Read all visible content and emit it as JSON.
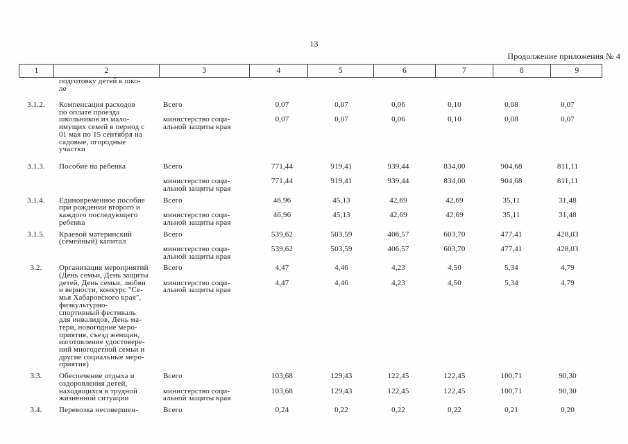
{
  "page": {
    "number": "13",
    "appendix_note": "Продолжение приложения № 4"
  },
  "table": {
    "column_numbers": [
      "1",
      "2",
      "3",
      "4",
      "5",
      "6",
      "7",
      "8",
      "9"
    ],
    "carryover_text": "подготовку детей к шко-\nле",
    "rows": [
      {
        "num": "3.1.2.",
        "name": "Компенсация расходов\nпо оплате проезда\nшкольников из мало-\nимущих семей в период с\n01 мая по 15 сентября на\nсадовые, огородные\nучастки",
        "total_label": "Всего",
        "ministry_label": "министерство соци-\nальной защиты края",
        "total_values": [
          "0,07",
          "0,07",
          "0,06",
          "0,10",
          "0,08",
          "0,07"
        ],
        "ministry_values": [
          "0,07",
          "0,07",
          "0,06",
          "0,10",
          "0,08",
          "0,07"
        ]
      },
      {
        "num": "3.1.3.",
        "name": "Пособие на ребенка",
        "total_label": "Всего",
        "ministry_label": "министерство соци-\nальной защиты края",
        "total_values": [
          "771,44",
          "919,41",
          "939,44",
          "834,00",
          "904,68",
          "811,11"
        ],
        "ministry_values": [
          "771,44",
          "919,41",
          "939,44",
          "834,00",
          "904,68",
          "811,11"
        ]
      },
      {
        "num": "3.1.4.",
        "name": "Единовременное пособие\nпри рождении второго и\nкаждого последующего\nребенка",
        "total_label": "Всего",
        "ministry_label": "министерство соци-\nальной защиты края",
        "total_values": [
          "46,96",
          "45,13",
          "42,69",
          "42,69",
          "35,11",
          "31,48"
        ],
        "ministry_values": [
          "46,96",
          "45,13",
          "42,69",
          "42,69",
          "35,11",
          "31,48"
        ]
      },
      {
        "num": "3.1.5.",
        "name": "Краевой материнский\n(семейный) капитал",
        "total_label": "Всего",
        "ministry_label": "министерство соци-\nальной защиты края",
        "total_values": [
          "539,62",
          "503,59",
          "406,57",
          "603,70",
          "477,41",
          "428,03"
        ],
        "ministry_values": [
          "539,62",
          "503,59",
          "406,57",
          "603,70",
          "477,41",
          "428,03"
        ]
      },
      {
        "num": "3.2.",
        "name": "Организация мероприятий\n(День семьи, День защиты\nдетей, День семьи, любви\nи верности, конкурс \"Се-\nмья Хабаровского края\",\nфизкультурно-\nспортивный фестиваль\nдля инвалидов, День ма-\nтери, новогодние меро-\nприятия, съезд женщин,\nизготовление удостовере-\nний многодетной семьи и\nдругие социальные меро-\nприятия)",
        "total_label": "Всего",
        "ministry_label": "министерство соци-\nальной защиты края",
        "total_values": [
          "4,47",
          "4,46",
          "4,23",
          "4,50",
          "5,34",
          "4,79"
        ],
        "ministry_values": [
          "4,47",
          "4,46",
          "4,23",
          "4,50",
          "5,34",
          "4,79"
        ]
      },
      {
        "num": "3.3.",
        "name": "Обеспечение отдыха и\nоздоровления детей,\nнаходящихся в трудной\nжизненной ситуации",
        "total_label": "Всего",
        "ministry_label": "министерство соци-\nальной защиты края",
        "total_values": [
          "103,68",
          "129,43",
          "122,45",
          "122,45",
          "100,71",
          "90,30"
        ],
        "ministry_values": [
          "103,68",
          "129,43",
          "122,45",
          "122,45",
          "100,71",
          "90,30"
        ]
      },
      {
        "num": "3.4.",
        "name": "Перевозка несовершен-",
        "total_label": "Всего",
        "ministry_label": "",
        "total_values": [
          "0,24",
          "0,22",
          "0,22",
          "0,22",
          "0,21",
          "0,20"
        ],
        "ministry_values": []
      }
    ]
  }
}
